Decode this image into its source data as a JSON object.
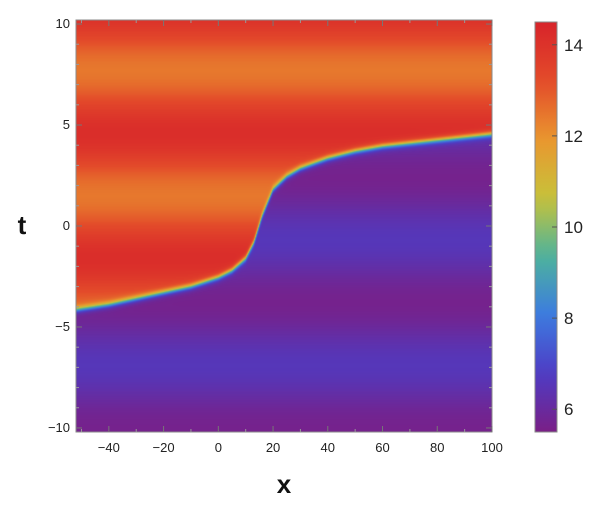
{
  "chart_data": {
    "type": "heatmap",
    "title": "",
    "xlabel": "x",
    "ylabel": "t",
    "xlim": [
      -52,
      100
    ],
    "ylim": [
      -10.2,
      10.2
    ],
    "x_ticks": [
      -40,
      -20,
      0,
      20,
      40,
      60,
      80,
      100
    ],
    "x_tick_labels": [
      "−40",
      "−20",
      "0",
      "20",
      "40",
      "60",
      "80",
      "100"
    ],
    "y_ticks": [
      -10,
      -5,
      0,
      5,
      10
    ],
    "y_tick_labels": [
      "−10",
      "−5",
      "0",
      "5",
      "10"
    ],
    "colorbar": {
      "range": [
        5.5,
        14.5
      ],
      "ticks": [
        6,
        8,
        10,
        12,
        14
      ],
      "tick_labels": [
        "6",
        "8",
        "10",
        "12",
        "14"
      ],
      "colormap": [
        "#7a1f86",
        "#4e3cc4",
        "#3c7be0",
        "#4db39c",
        "#c7c23a",
        "#e9962f",
        "#e34b2a",
        "#d7232a"
      ]
    },
    "regions": {
      "upper_left": {
        "base": 13.3,
        "amplitude": 0.85,
        "period_t": 6.2
      },
      "lower_right": {
        "base": 6.1,
        "amplitude": 0.45,
        "period_t": 6.2
      }
    },
    "front_curve": {
      "x": [
        -52,
        -40,
        -30,
        -20,
        -10,
        0,
        5,
        10,
        13,
        16,
        20,
        25,
        30,
        40,
        50,
        60,
        70,
        80,
        90,
        100
      ],
      "t": [
        -4.15,
        -3.9,
        -3.6,
        -3.3,
        -3.0,
        -2.55,
        -2.2,
        -1.6,
        -0.8,
        0.5,
        1.8,
        2.45,
        2.85,
        3.35,
        3.7,
        3.95,
        4.1,
        4.25,
        4.4,
        4.55
      ]
    }
  }
}
